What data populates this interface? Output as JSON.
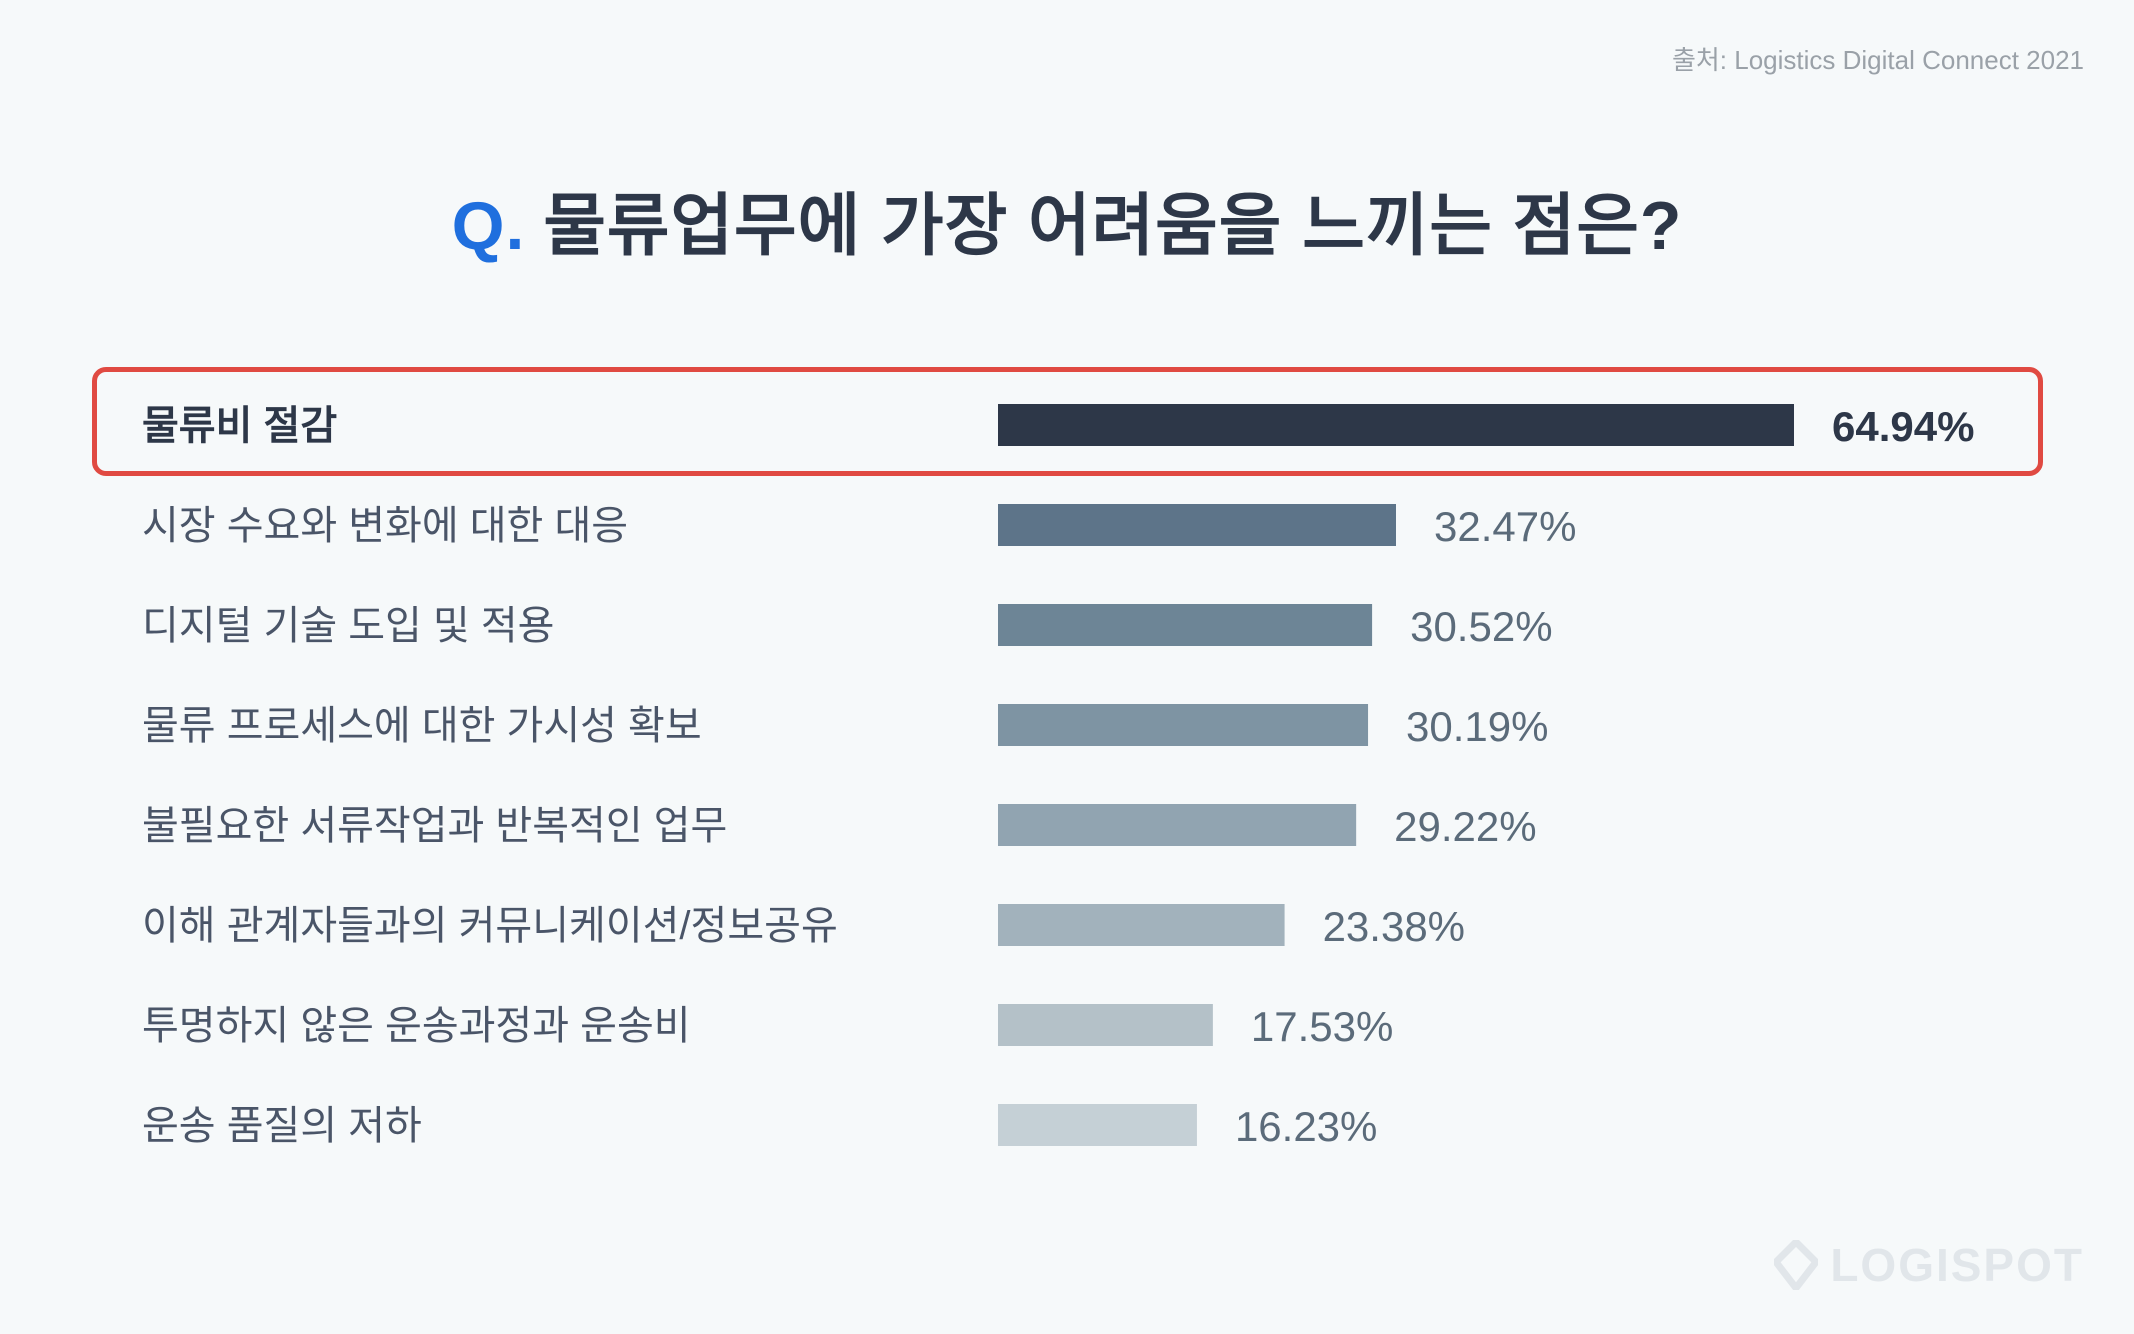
{
  "source": "출처: Logistics Digital Connect 2021",
  "title": {
    "prefix": "Q.",
    "text": "물류업무에 가장 어려움을 느끼는 점은?"
  },
  "logo": "LOGISPOT",
  "colors": {
    "highlight_border": "#e04a42",
    "title_accent": "#1f6fde",
    "bars": [
      "#2d3748",
      "#5d7489",
      "#6d8596",
      "#7e94a3",
      "#91a4b1",
      "#a2b2bc",
      "#b4c1c8",
      "#c5d0d6"
    ]
  },
  "chart_data": {
    "type": "bar",
    "orientation": "horizontal",
    "categories": [
      "물류비 절감",
      "시장 수요와 변화에 대한 대응",
      "디지털 기술 도입 및 적용",
      "물류 프로세스에 대한 가시성 확보",
      "불필요한 서류작업과 반복적인 업무",
      "이해 관계자들과의 커뮤니케이션/정보공유",
      "투명하지 않은 운송과정과 운송비",
      "운송 품질의 저하"
    ],
    "values": [
      64.94,
      32.47,
      30.52,
      30.19,
      29.22,
      23.38,
      17.53,
      16.23
    ],
    "value_labels": [
      "64.94%",
      "32.47%",
      "30.52%",
      "30.19%",
      "29.22%",
      "23.38%",
      "17.53%",
      "16.23%"
    ],
    "highlighted_index": 0,
    "grid": false,
    "legend": "none"
  }
}
